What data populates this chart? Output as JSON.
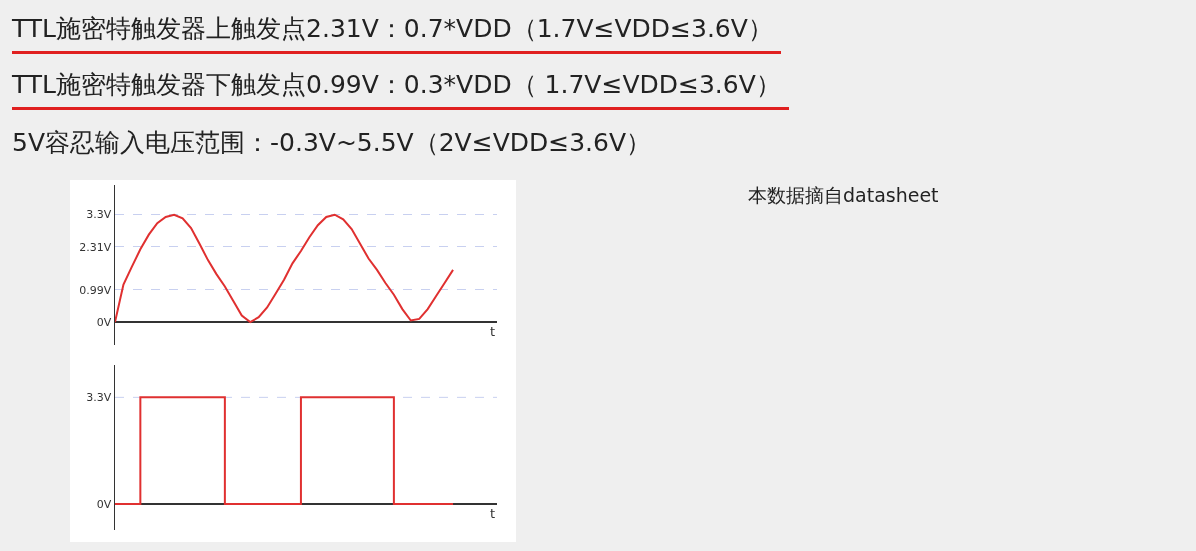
{
  "chart_data": [
    {
      "type": "line",
      "annotations": [
        "TTL施密特触发器上触发点2.31V：0.7*VDD（1.7V≤VDD≤3.6V）",
        "TTL施密特触发器下触发点0.99V：0.3*VDD（ 1.7V≤VDD≤3.6V）",
        "5V容忍输入电压范围：-0.3V~5.5V（2V≤VDD≤3.6V）",
        "本数据摘自datasheet"
      ],
      "xlabel": "t",
      "categories": [
        null,
        null,
        null,
        null,
        null,
        null,
        null,
        null,
        null,
        null,
        null,
        null,
        null,
        null,
        null,
        null,
        null,
        null,
        null,
        null,
        null,
        null,
        null,
        null,
        null,
        null,
        null,
        null,
        null,
        null,
        null,
        null,
        null,
        null,
        null,
        null,
        null,
        null,
        null,
        null,
        null
      ],
      "ylim": [
        -0.7,
        4.2
      ],
      "yticks": [
        {
          "value": 0,
          "label": "0V"
        },
        {
          "value": 0.99,
          "label": "0.99V"
        },
        {
          "value": 2.31,
          "label": "2.31V"
        },
        {
          "value": 3.3,
          "label": "3.3V"
        }
      ],
      "grid": "y",
      "tick_labels": "y",
      "series": [
        {
          "color": "#e03030",
          "values": [
            0,
            1.15,
            1.7,
            2.23,
            2.68,
            3.03,
            3.22,
            3.29,
            3.18,
            2.88,
            2.4,
            1.9,
            1.47,
            1.09,
            0.65,
            0.2,
            0,
            0.15,
            0.45,
            0.87,
            1.3,
            1.8,
            2.18,
            2.6,
            2.97,
            3.22,
            3.29,
            3.15,
            2.85,
            2.4,
            1.95,
            1.6,
            1.2,
            0.84,
            0.4,
            0.05,
            0.1,
            0.4,
            0.8,
            1.2,
            1.6
          ]
        }
      ]
    },
    {
      "type": "step",
      "xlabel": "t",
      "categories": [
        null,
        null,
        null,
        null,
        null,
        null,
        null,
        null,
        null,
        null,
        null,
        null,
        null,
        null,
        null,
        null,
        null,
        null,
        null,
        null,
        null,
        null,
        null,
        null,
        null,
        null,
        null,
        null,
        null,
        null,
        null,
        null,
        null,
        null,
        null,
        null,
        null,
        null,
        null,
        null,
        null
      ],
      "ylim": [
        -0.8,
        4.3
      ],
      "yticks": [
        {
          "value": 0,
          "label": "0V"
        },
        {
          "value": 3.3,
          "label": "3.3V"
        }
      ],
      "ref_lines": [
        {
          "axis": "y",
          "value": 3.3,
          "color": "#c8d0f0",
          "line_style": "dashed"
        }
      ],
      "tick_labels": "y",
      "series": [
        {
          "color": "#e03030",
          "values": [
            0,
            0,
            0,
            3.3,
            3.3,
            3.3,
            3.3,
            3.3,
            3.3,
            3.3,
            3.3,
            3.3,
            3.3,
            0,
            0,
            0,
            0,
            0,
            0,
            0,
            0,
            0,
            3.3,
            3.3,
            3.3,
            3.3,
            3.3,
            3.3,
            3.3,
            3.3,
            3.3,
            3.3,
            3.3,
            0,
            0,
            0,
            0,
            0,
            0,
            0,
            0
          ]
        }
      ]
    }
  ]
}
